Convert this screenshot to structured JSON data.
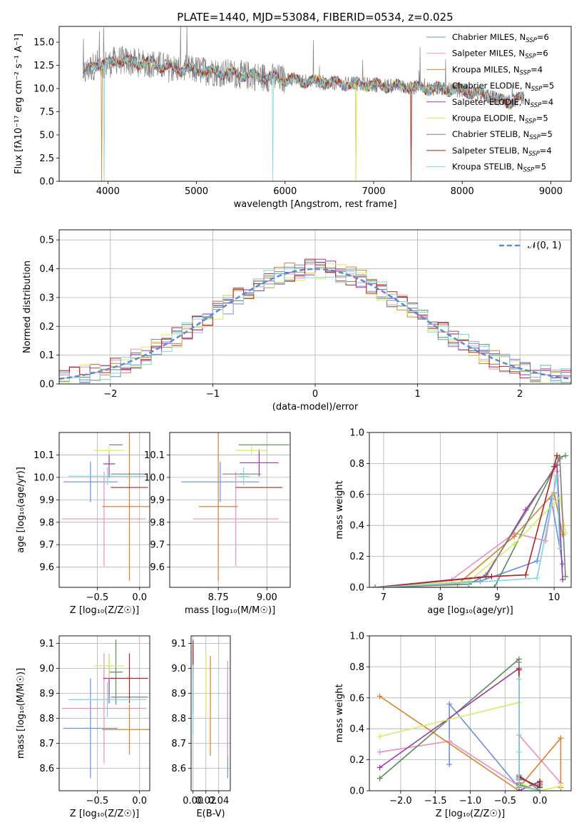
{
  "colors": {
    "Chabrier MILES": "#6a8fdc",
    "Salpeter MILES": "#e88fc0",
    "Kroupa MILES": "#d9822b",
    "Chabrier ELODIE": "#5c8a5c",
    "Salpeter ELODIE": "#9b3aa8",
    "Kroupa ELODIE": "#d9ec5c",
    "Chabrier STELIB": "#7f7f7f",
    "Salpeter STELIB": "#b22222",
    "Kroupa STELIB": "#7fd6e0"
  },
  "chart_data": [
    {
      "id": "spectrum",
      "type": "line",
      "title": "PLATE=1440, MJD=53084, FIBERID=0534, z=0.025",
      "xlabel": "wavelength [Angstrom, rest frame]",
      "ylabel": "Flux [fλ10⁻¹⁷ erg cm⁻² s⁻¹ A⁻¹]",
      "xlim": [
        3450,
        9230
      ],
      "ylim": [
        0,
        16.7
      ],
      "xticks": [
        4000,
        5000,
        6000,
        7000,
        8000,
        9000
      ],
      "yticks": [
        0.0,
        2.5,
        5.0,
        7.5,
        10.0,
        12.5,
        15.0
      ],
      "x_range_data": [
        3720,
        8700
      ],
      "continuum_points": [
        [
          3720,
          11.5
        ],
        [
          3800,
          12.2
        ],
        [
          3900,
          12.8
        ],
        [
          4000,
          12.6
        ],
        [
          4100,
          13.1
        ],
        [
          4300,
          12.8
        ],
        [
          4500,
          12.7
        ],
        [
          4700,
          12.2
        ],
        [
          5000,
          12.0
        ],
        [
          5300,
          11.7
        ],
        [
          5600,
          11.4
        ],
        [
          6000,
          11.0
        ],
        [
          6500,
          10.6
        ],
        [
          7000,
          10.4
        ],
        [
          7500,
          10.1
        ],
        [
          8000,
          9.8
        ],
        [
          8300,
          9.2
        ],
        [
          8500,
          8.5
        ],
        [
          8700,
          9.0
        ]
      ],
      "legend": [
        {
          "name": "Chabrier MILES",
          "text": "Chabrier MILES, N",
          "nssp": "=6"
        },
        {
          "name": "Salpeter MILES",
          "text": "Salpeter MILES, N",
          "nssp": "=6"
        },
        {
          "name": "Kroupa MILES",
          "text": "Kroupa MILES, N",
          "nssp": "=4"
        },
        {
          "name": "Chabrier ELODIE",
          "text": "Chabrier ELODIE, N",
          "nssp": "=5"
        },
        {
          "name": "Salpeter ELODIE",
          "text": "Salpeter ELODIE, N",
          "nssp": "=4"
        },
        {
          "name": "Kroupa ELODIE",
          "text": "Kroupa ELODIE, N",
          "nssp": "=5"
        },
        {
          "name": "Chabrier STELIB",
          "text": "Chabrier STELIB, N",
          "nssp": "=5"
        },
        {
          "name": "Salpeter STELIB",
          "text": "Salpeter STELIB, N",
          "nssp": "=4"
        },
        {
          "name": "Kroupa STELIB",
          "text": "Kroupa STELIB, N",
          "nssp": "=5"
        }
      ],
      "legend_subscript": "SSP",
      "legend_position": "upper-right"
    },
    {
      "id": "residuals",
      "type": "histogram",
      "xlabel": "(data-model)/error",
      "ylabel": "Normed distribution",
      "xlim": [
        -2.5,
        2.5
      ],
      "ylim": [
        0,
        0.535
      ],
      "xticks": [
        -2,
        -1,
        0,
        1,
        2
      ],
      "xtick_labels": [
        "−2",
        "−1",
        "0",
        "1",
        "2"
      ],
      "yticks": [
        0.0,
        0.1,
        0.2,
        0.3,
        0.4,
        0.5
      ],
      "grid": true,
      "bin_width": 0.1,
      "series_order": [
        "Chabrier MILES",
        "Salpeter MILES",
        "Kroupa MILES",
        "Chabrier ELODIE",
        "Salpeter ELODIE",
        "Kroupa ELODIE",
        "Salpeter STELIB",
        "Kroupa STELIB"
      ],
      "reference_curve": {
        "name": "𝒩(0, 1)",
        "color": "#5b8bd6",
        "mean": 0,
        "sigma": 1
      },
      "legend_position": "upper-right"
    },
    {
      "id": "age-vs-Z",
      "type": "errorbar",
      "xlabel": "Z [log₁₀(Z/Z☉)]",
      "ylabel": "age  [log₁₀(age/yr)]",
      "xlim": [
        -0.95,
        0.12
      ],
      "ylim": [
        9.51,
        10.2
      ],
      "xticks": [
        -0.5,
        0.0
      ],
      "xtick_labels": [
        "−0.5",
        "0.0"
      ],
      "yticks": [
        9.6,
        9.7,
        9.8,
        9.9,
        10.0,
        10.1
      ],
      "grid": true,
      "points": [
        {
          "name": "Chabrier MILES",
          "x": -0.58,
          "xerr": 0.32,
          "y": 9.98,
          "yerr": 0.09
        },
        {
          "name": "Salpeter MILES",
          "x": -0.42,
          "xerr": 0.5,
          "y": 9.815,
          "yerr": 0.21
        },
        {
          "name": "Kroupa MILES",
          "x": -0.12,
          "xerr": 0.32,
          "y": 9.87,
          "yerr": 0.33
        },
        {
          "name": "Chabrier ELODIE",
          "x": -0.28,
          "xerr": 0.08,
          "y": 10.145,
          "yerr": 0.002
        },
        {
          "name": "Salpeter ELODIE",
          "x": -0.36,
          "xerr": 0.07,
          "y": 10.06,
          "yerr": 0.06
        },
        {
          "name": "Kroupa ELODIE",
          "x": -0.36,
          "xerr": 0.18,
          "y": 10.12,
          "yerr": 0.02
        },
        {
          "name": "Chabrier STELIB",
          "x": -0.12,
          "xerr": 0.22,
          "y": 10.015,
          "yerr": 0.003
        },
        {
          "name": "Salpeter STELIB",
          "x": -0.12,
          "xerr": 0.22,
          "y": 9.955,
          "yerr": 0.002
        },
        {
          "name": "Kroupa STELIB",
          "x": -0.38,
          "xerr": 0.46,
          "y": 10.005,
          "yerr": 0.04
        }
      ]
    },
    {
      "id": "age-vs-mass",
      "type": "errorbar",
      "xlabel": "mass [log₁₀(M/M☉)]",
      "xlim": [
        8.5,
        9.12
      ],
      "ylim": [
        9.51,
        10.2
      ],
      "xticks": [
        8.75,
        9.0
      ],
      "xtick_labels": [
        "8.75",
        "9.00"
      ],
      "yticks": [
        9.6,
        9.7,
        9.8,
        9.9,
        10.0,
        10.1
      ],
      "grid": true,
      "points": [
        {
          "name": "Chabrier MILES",
          "x": 8.76,
          "xerr": 0.2,
          "y": 9.98,
          "yerr": 0.09
        },
        {
          "name": "Salpeter MILES",
          "x": 8.84,
          "xerr": 0.22,
          "y": 9.815,
          "yerr": 0.21
        },
        {
          "name": "Kroupa MILES",
          "x": 8.75,
          "xerr": 0.1,
          "y": 9.87,
          "yerr": 0.33
        },
        {
          "name": "Chabrier ELODIE",
          "x": 8.985,
          "xerr": 0.13,
          "y": 10.145,
          "yerr": 0.002
        },
        {
          "name": "Salpeter ELODIE",
          "x": 8.96,
          "xerr": 0.1,
          "y": 10.065,
          "yerr": 0.06
        },
        {
          "name": "Kroupa ELODIE",
          "x": 8.92,
          "xerr": 0.08,
          "y": 10.12,
          "yerr": 0.02
        },
        {
          "name": "Chabrier STELIB",
          "x": 8.87,
          "xerr": 0.1,
          "y": 10.015,
          "yerr": 0.003
        },
        {
          "name": "Salpeter STELIB",
          "x": 8.96,
          "xerr": 0.12,
          "y": 9.955,
          "yerr": 0.002
        },
        {
          "name": "Kroupa STELIB",
          "x": 8.88,
          "xerr": 0.03,
          "y": 10.005,
          "yerr": 0.04
        }
      ]
    },
    {
      "id": "massweight-vs-age",
      "type": "line",
      "xlabel": "age  [log₁₀(age/yr)]",
      "ylabel": "mass weight",
      "xlim": [
        6.75,
        10.3
      ],
      "ylim": [
        0,
        1.0
      ],
      "xticks": [
        7,
        8,
        9,
        10
      ],
      "yticks": [
        0.0,
        0.2,
        0.4,
        0.6,
        0.8,
        1.0
      ],
      "grid": true,
      "series": [
        {
          "name": "Chabrier MILES",
          "x": [
            6.85,
            8.7,
            9.7,
            9.95,
            10.15
          ],
          "y": [
            0.0,
            0.04,
            0.17,
            0.57,
            0.15
          ]
        },
        {
          "name": "Salpeter MILES",
          "x": [
            6.85,
            8.2,
            9.3,
            9.85,
            10.05
          ],
          "y": [
            0.0,
            0.05,
            0.35,
            0.3,
            0.75
          ]
        },
        {
          "name": "Kroupa MILES",
          "x": [
            6.85,
            8.3,
            9.3,
            10.0,
            10.15
          ],
          "y": [
            0.0,
            0.02,
            0.33,
            0.61,
            0.34
          ]
        },
        {
          "name": "Chabrier ELODIE",
          "x": [
            6.85,
            8.5,
            8.95,
            10.1,
            10.2
          ],
          "y": [
            0.0,
            0.0,
            0.0,
            0.84,
            0.85
          ]
        },
        {
          "name": "Salpeter ELODIE",
          "x": [
            6.85,
            8.8,
            9.5,
            10.05,
            10.15
          ],
          "y": [
            0.0,
            0.07,
            0.5,
            0.79,
            0.05
          ]
        },
        {
          "name": "Kroupa ELODIE",
          "x": [
            6.85,
            8.5,
            9.3,
            10.1,
            10.2
          ],
          "y": [
            0.0,
            0.04,
            0.28,
            0.58,
            0.35
          ]
        },
        {
          "name": "Chabrier STELIB",
          "x": [
            6.85,
            8.5,
            8.8,
            10.1,
            10.2
          ],
          "y": [
            0.0,
            0.02,
            0.08,
            0.83,
            0.07
          ]
        },
        {
          "name": "Salpeter STELIB",
          "x": [
            6.85,
            8.9,
            9.5,
            10.0,
            10.05
          ],
          "y": [
            0.0,
            0.07,
            0.08,
            0.78,
            0.85
          ]
        },
        {
          "name": "Kroupa STELIB",
          "x": [
            6.85,
            8.5,
            9.7,
            10.05,
            10.1
          ],
          "y": [
            0.0,
            0.03,
            0.06,
            0.72,
            0.25
          ]
        }
      ]
    },
    {
      "id": "mass-vs-Z",
      "type": "errorbar",
      "xlabel": "Z [log₁₀(Z/Z☉)]",
      "ylabel": "mass [log₁₀(M/M☉)]",
      "xlim": [
        -0.95,
        0.12
      ],
      "ylim": [
        8.51,
        9.13
      ],
      "xticks": [
        -0.5,
        0.0
      ],
      "xtick_labels": [
        "−0.5",
        "0.0"
      ],
      "yticks": [
        8.6,
        8.7,
        8.8,
        8.9,
        9.0,
        9.1
      ],
      "grid": true,
      "points": [
        {
          "name": "Chabrier MILES",
          "x": -0.58,
          "xerr": 0.32,
          "y": 8.76,
          "yerr": 0.2
        },
        {
          "name": "Salpeter MILES",
          "x": -0.42,
          "xerr": 0.5,
          "y": 8.84,
          "yerr": 0.22
        },
        {
          "name": "Kroupa MILES",
          "x": -0.12,
          "xerr": 0.32,
          "y": 8.755,
          "yerr": 0.1
        },
        {
          "name": "Chabrier ELODIE",
          "x": -0.28,
          "xerr": 0.08,
          "y": 8.985,
          "yerr": 0.13
        },
        {
          "name": "Salpeter ELODIE",
          "x": -0.36,
          "xerr": 0.07,
          "y": 8.96,
          "yerr": 0.1
        },
        {
          "name": "Kroupa ELODIE",
          "x": -0.36,
          "xerr": 0.18,
          "y": 9.01,
          "yerr": 0.05
        },
        {
          "name": "Chabrier STELIB",
          "x": -0.12,
          "xerr": 0.22,
          "y": 8.885,
          "yerr": 0.002
        },
        {
          "name": "Salpeter STELIB",
          "x": -0.12,
          "xerr": 0.22,
          "y": 8.96,
          "yerr": 0.1
        },
        {
          "name": "Kroupa STELIB",
          "x": -0.38,
          "xerr": 0.46,
          "y": 8.875,
          "yerr": 0.07
        }
      ]
    },
    {
      "id": "mass-vs-ebv",
      "type": "errorbar",
      "xlabel": "E(B-V)",
      "xlim": [
        -0.003,
        0.058
      ],
      "ylim": [
        8.51,
        9.13
      ],
      "xticks": [
        0.0,
        0.02,
        0.04
      ],
      "xtick_labels": [
        "0.00",
        "0.02",
        "0.04"
      ],
      "yticks": [
        8.6,
        8.7,
        8.8,
        8.9,
        9.0,
        9.1
      ],
      "grid": true,
      "points": [
        {
          "name": "Chabrier MILES",
          "x": 0.054,
          "xerr": 0,
          "y": 8.76,
          "yerr": 0.2
        },
        {
          "name": "Salpeter MILES",
          "x": 0.054,
          "xerr": 0,
          "y": 8.84,
          "yerr": 0.19
        },
        {
          "name": "Kroupa MILES",
          "x": 0.027,
          "xerr": 0,
          "y": 8.85,
          "yerr": 0.2
        },
        {
          "name": "Chabrier ELODIE",
          "x": 0.0,
          "xerr": 0,
          "y": 8.985,
          "yerr": 0.13
        },
        {
          "name": "Salpeter ELODIE",
          "x": 0.0,
          "xerr": 0,
          "y": 8.96,
          "yerr": 0.1
        },
        {
          "name": "Kroupa ELODIE",
          "x": 0.02,
          "xerr": 0,
          "y": 8.94,
          "yerr": 0.12
        },
        {
          "name": "Chabrier STELIB",
          "x": 0.0,
          "xerr": 0,
          "y": 8.885,
          "yerr": 0.07
        },
        {
          "name": "Salpeter STELIB",
          "x": 0.0,
          "xerr": 0,
          "y": 9.04,
          "yerr": 0.07
        },
        {
          "name": "Kroupa STELIB",
          "x": 0.0,
          "xerr": 0,
          "y": 8.875,
          "yerr": 0.14
        }
      ]
    },
    {
      "id": "massweight-vs-Z",
      "type": "line",
      "xlabel": "Z [log₁₀(Z/Z☉)]",
      "ylabel": "mass weight",
      "xlim": [
        -2.45,
        0.45
      ],
      "ylim": [
        0,
        1.0
      ],
      "xticks": [
        -2.0,
        -1.5,
        -1.0,
        -0.5,
        0.0
      ],
      "xtick_labels": [
        "−2.0",
        "−1.5",
        "−1.0",
        "−0.5",
        "0.0"
      ],
      "yticks": [
        0.0,
        0.2,
        0.4,
        0.6,
        0.8,
        1.0
      ],
      "grid": true,
      "series": [
        {
          "name": "Chabrier MILES",
          "x": [
            -1.3,
            -1.3,
            -0.3,
            -0.3,
            0.0
          ],
          "y": [
            0.17,
            0.56,
            0.02,
            0.08,
            0.03
          ]
        },
        {
          "name": "Salpeter MILES",
          "x": [
            -2.3,
            -1.3,
            -0.3,
            -0.3,
            0.3
          ],
          "y": [
            0.25,
            0.32,
            0.03,
            0.36,
            0.05
          ]
        },
        {
          "name": "Kroupa MILES",
          "x": [
            -2.3,
            -0.3,
            -0.3,
            0.3,
            0.3
          ],
          "y": [
            0.61,
            0.0,
            0.02,
            0.34,
            0.02
          ]
        },
        {
          "name": "Chabrier ELODIE",
          "x": [
            -2.3,
            -0.3,
            -0.3,
            0.0,
            0.0
          ],
          "y": [
            0.08,
            0.85,
            0.04,
            0.0,
            0.05
          ]
        },
        {
          "name": "Salpeter ELODIE",
          "x": [
            -2.3,
            -0.3,
            -0.3,
            0.0,
            0.0
          ],
          "y": [
            0.15,
            0.79,
            0.0,
            0.06,
            0.0
          ]
        },
        {
          "name": "Kroupa ELODIE",
          "x": [
            -2.3,
            -0.3,
            -0.3,
            0.0,
            0.3
          ],
          "y": [
            0.35,
            0.57,
            0.05,
            0.0,
            0.03
          ]
        },
        {
          "name": "Chabrier STELIB",
          "x": [
            -0.3,
            -0.3,
            -0.3,
            0.0,
            0.0
          ],
          "y": [
            0.83,
            0.07,
            0.1,
            0.0,
            0.04
          ]
        },
        {
          "name": "Salpeter STELIB",
          "x": [
            -0.3,
            -0.3,
            -0.3,
            0.0,
            0.0
          ],
          "y": [
            0.78,
            0.05,
            0.09,
            0.02,
            0.06
          ]
        },
        {
          "name": "Kroupa STELIB",
          "x": [
            -0.3,
            -0.3,
            -0.3,
            0.0,
            0.0
          ],
          "y": [
            0.72,
            0.25,
            0.03,
            0.0,
            0.0
          ]
        }
      ]
    }
  ]
}
